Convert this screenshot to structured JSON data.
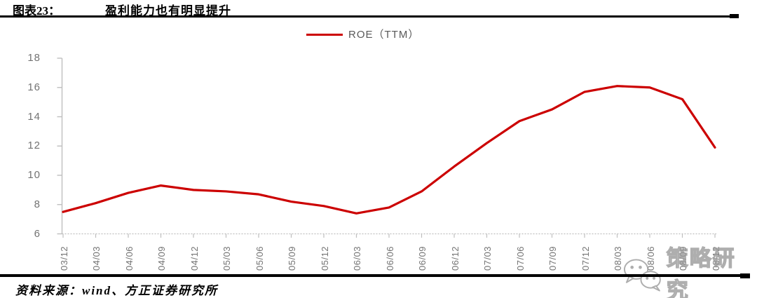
{
  "header": {
    "label": "图表23：",
    "title": "盈利能力也有明显提升"
  },
  "legend": {
    "label": "ROE（TTM）"
  },
  "chart_data": {
    "type": "line",
    "title": "",
    "xlabel": "",
    "ylabel": "",
    "categories": [
      "03/12",
      "04/03",
      "04/06",
      "04/09",
      "04/12",
      "05/03",
      "05/06",
      "05/09",
      "05/12",
      "06/03",
      "06/06",
      "06/09",
      "06/12",
      "07/03",
      "07/06",
      "07/09",
      "07/12",
      "08/03",
      "08/06",
      "08/09",
      "08/12"
    ],
    "series": [
      {
        "name": "ROE（TTM）",
        "color": "#CC0000",
        "values": [
          7.5,
          8.1,
          8.8,
          9.3,
          9.0,
          8.9,
          8.7,
          8.2,
          7.9,
          7.4,
          7.8,
          8.9,
          10.6,
          12.2,
          13.7,
          14.5,
          15.7,
          16.1,
          16.0,
          15.2,
          11.9
        ]
      }
    ],
    "ylim": [
      6,
      18
    ],
    "yticks": [
      18,
      16,
      14,
      12,
      10,
      8,
      6
    ],
    "grid": false,
    "legend_position": "top-center"
  },
  "colors": {
    "line": "#CC0000",
    "axis": "#BFBFBF",
    "tick_label": "#737373",
    "watermark": "#9a9a9a"
  },
  "watermark": {
    "icon": "wechat-icon",
    "text": "策略研究"
  },
  "footer": {
    "source": "资料来源：wind、方正证券研究所"
  }
}
